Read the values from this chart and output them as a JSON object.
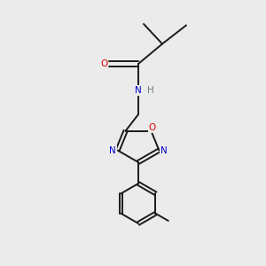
{
  "background_color": "#ebebeb",
  "bond_color": "#1a1a1a",
  "atom_colors": {
    "O": "#e00000",
    "N": "#0000cc",
    "C": "#1a1a1a",
    "H": "#6a8080"
  },
  "figsize": [
    3.0,
    3.0
  ],
  "dpi": 100
}
